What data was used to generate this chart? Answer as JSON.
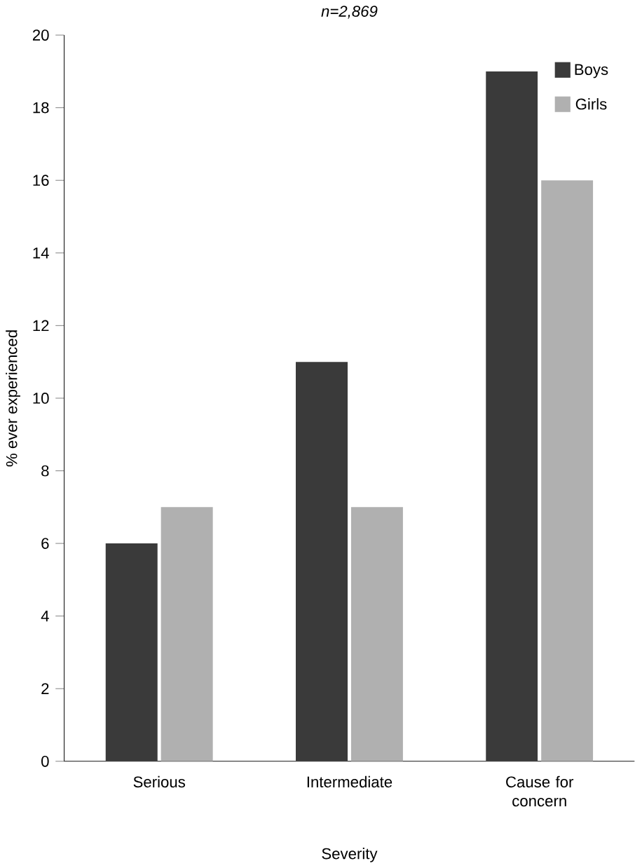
{
  "chart_data": {
    "type": "bar",
    "title": "n=2,869",
    "xlabel": "Severity",
    "ylabel": "% ever experienced",
    "categories": [
      "Serious",
      "Intermediate",
      "Cause for concern"
    ],
    "series": [
      {
        "name": "Boys",
        "color": "#3a3a3a",
        "values": [
          6,
          11,
          19
        ]
      },
      {
        "name": "Girls",
        "color": "#b0b0b0",
        "values": [
          7,
          7,
          16
        ]
      }
    ],
    "ylim": [
      0,
      20
    ],
    "yticks": [
      0,
      2,
      4,
      6,
      8,
      10,
      12,
      14,
      16,
      18,
      20
    ],
    "grid": false,
    "legend": "top right"
  }
}
